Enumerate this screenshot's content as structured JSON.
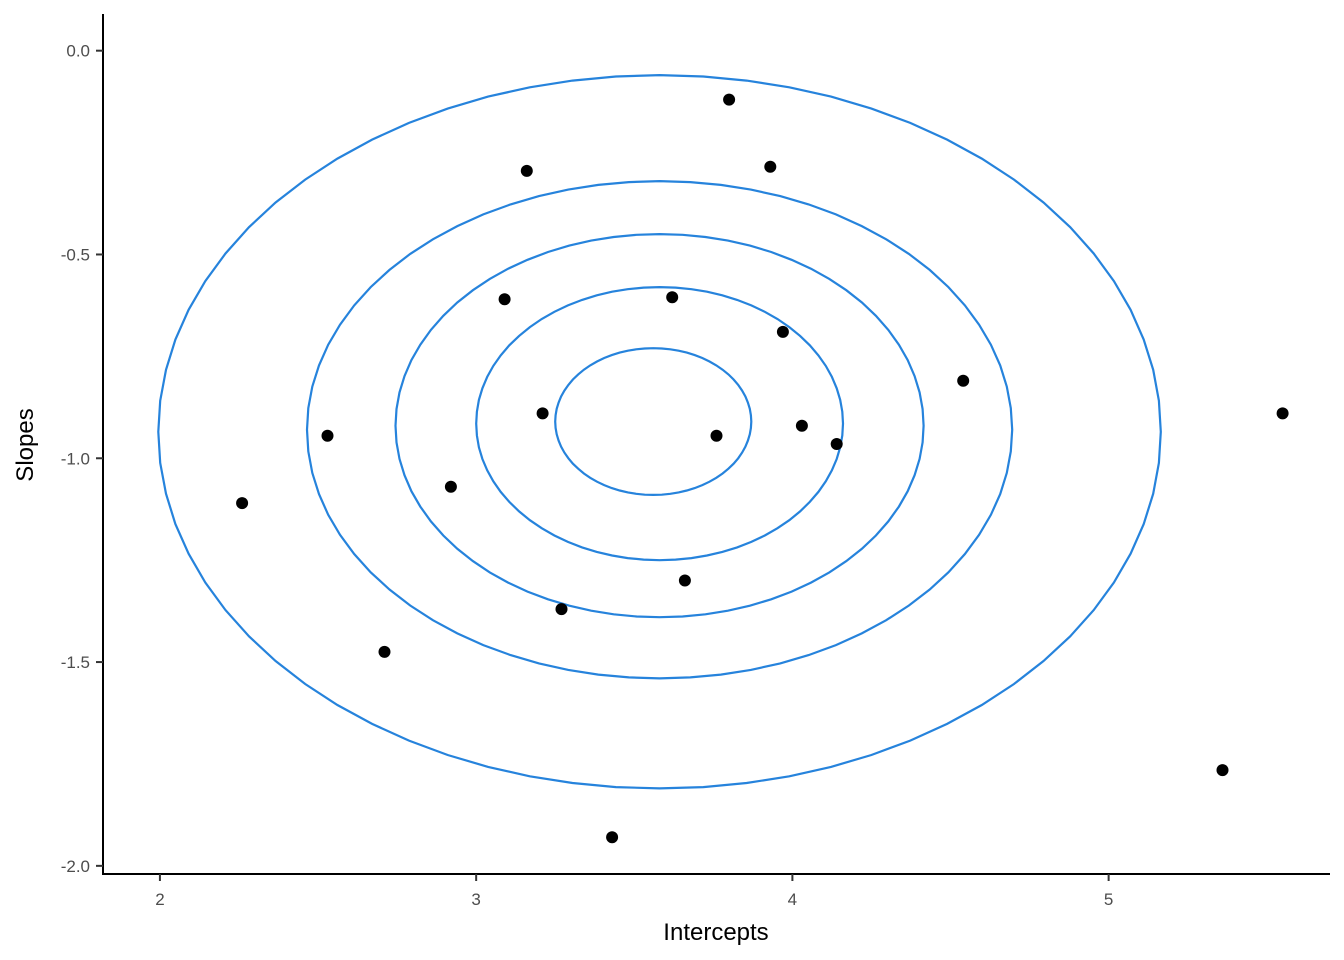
{
  "chart_data": {
    "type": "scatter",
    "title": "",
    "xlabel": "Intercepts",
    "ylabel": "Slopes",
    "xlim": [
      1.82,
      5.7
    ],
    "ylim": [
      -2.02,
      0.09
    ],
    "x_ticks": [
      2,
      3,
      4,
      5
    ],
    "y_ticks": [
      0.0,
      -0.5,
      -1.0,
      -1.5,
      -2.0
    ],
    "x_tick_labels": [
      "2",
      "3",
      "4",
      "5"
    ],
    "y_tick_labels": [
      "0.0",
      "-0.5",
      "-1.0",
      "-1.5",
      "-2.0"
    ],
    "grid": false,
    "legend": "none",
    "points": {
      "color": "#000000",
      "x": [
        3.8,
        3.93,
        3.16,
        3.09,
        3.62,
        3.97,
        4.54,
        5.55,
        3.21,
        3.76,
        4.03,
        4.14,
        2.53,
        2.26,
        2.92,
        3.66,
        3.27,
        2.71,
        5.36,
        3.43
      ],
      "y": [
        -0.12,
        -0.285,
        -0.295,
        -0.61,
        -0.605,
        -0.69,
        -0.81,
        -0.89,
        -0.89,
        -0.945,
        -0.92,
        -0.965,
        -0.945,
        -1.11,
        -1.07,
        -1.3,
        -1.37,
        -1.475,
        -1.765,
        -1.93
      ]
    },
    "contours": {
      "color": "#2683DC",
      "rings": [
        {
          "cx": 3.56,
          "cy": -0.91,
          "rx": 0.31,
          "ry": 0.18
        },
        {
          "cx": 3.58,
          "cy": -0.915,
          "rx": 0.58,
          "ry": 0.335
        },
        {
          "cx": 3.58,
          "cy": -0.92,
          "rx": 0.835,
          "ry": 0.47
        },
        {
          "cx": 3.58,
          "cy": -0.93,
          "rx": 1.115,
          "ry": 0.61
        },
        {
          "cx": 3.58,
          "cy": -0.935,
          "rx": 1.585,
          "ry": 0.875
        }
      ]
    }
  }
}
